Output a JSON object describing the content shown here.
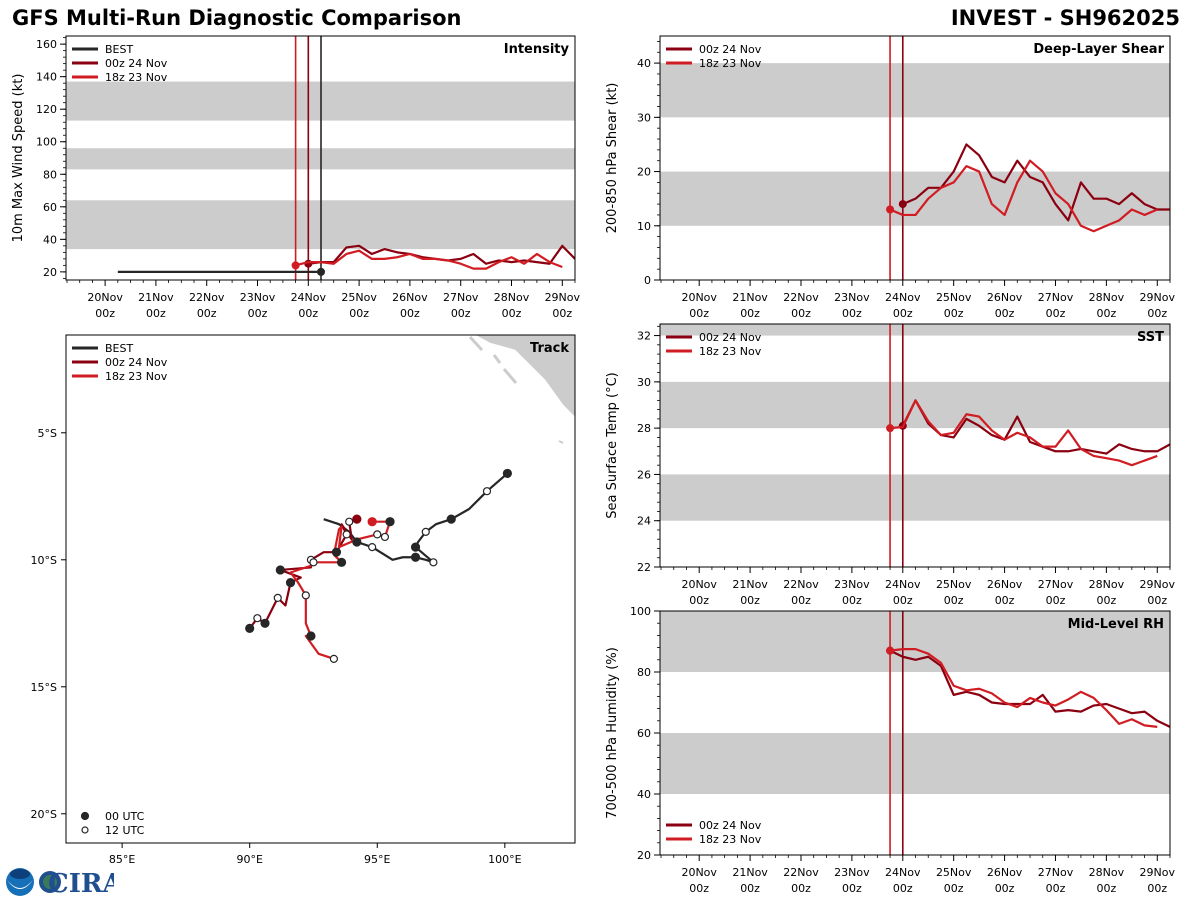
{
  "header": {
    "title": "GFS Multi-Run Diagnostic Comparison",
    "storm": "INVEST - SH962025"
  },
  "colors": {
    "best": "#262626",
    "run_00z_24nov": "#8b0010",
    "run_18z_23nov": "#d01c22",
    "band": "#cccccc"
  },
  "logo": {
    "text": "CIRA"
  },
  "time_axis": {
    "origin": "20Nov 00z",
    "unit": "days",
    "range": [
      -0.77,
      9.25
    ],
    "ticks": [
      {
        "t": 0,
        "line1": "20Nov",
        "line2": "00z"
      },
      {
        "t": 1,
        "line1": "21Nov",
        "line2": "00z"
      },
      {
        "t": 2,
        "line1": "22Nov",
        "line2": "00z"
      },
      {
        "t": 3,
        "line1": "23Nov",
        "line2": "00z"
      },
      {
        "t": 4,
        "line1": "24Nov",
        "line2": "00z"
      },
      {
        "t": 5,
        "line1": "25Nov",
        "line2": "00z"
      },
      {
        "t": 6,
        "line1": "26Nov",
        "line2": "00z"
      },
      {
        "t": 7,
        "line1": "27Nov",
        "line2": "00z"
      },
      {
        "t": 8,
        "line1": "28Nov",
        "line2": "00z"
      },
      {
        "t": 9,
        "line1": "29Nov",
        "line2": "00z"
      }
    ]
  },
  "chart_data": [
    {
      "id": "intensity",
      "type": "line",
      "title": "Intensity",
      "ylabel": "10m Max Wind Speed (kt)",
      "xlabel": "",
      "ylim": [
        15,
        165
      ],
      "yticks": [
        20,
        40,
        60,
        80,
        100,
        120,
        140,
        160
      ],
      "bands": [
        [
          34,
          64
        ],
        [
          83,
          96
        ],
        [
          113,
          137
        ]
      ],
      "legend": {
        "position": "top-left",
        "entries": [
          "BEST",
          "00z 24 Nov",
          "18z 23 Nov"
        ]
      },
      "init_lines": [
        {
          "t": 3.75,
          "series": "18z 23 Nov"
        },
        {
          "t": 4.0,
          "series": "00z 24 Nov"
        },
        {
          "t": 4.25,
          "series": "BEST"
        }
      ],
      "series": [
        {
          "name": "BEST",
          "color_key": "best",
          "t": [
            0.25,
            4.25
          ],
          "values": [
            20,
            20
          ],
          "marker_end": true
        },
        {
          "name": "00z 24 Nov",
          "color_key": "run_00z_24nov",
          "t": [
            4.0,
            4.25,
            4.5,
            4.75,
            5.0,
            5.25,
            5.5,
            5.75,
            6.0,
            6.25,
            6.5,
            6.75,
            7.0,
            7.25,
            7.5,
            7.75,
            8.0,
            8.25,
            8.5,
            8.75,
            9.0,
            9.25
          ],
          "values": [
            25,
            26,
            26,
            35,
            36,
            31,
            34,
            32,
            31,
            29,
            28,
            27,
            28,
            31,
            25,
            27,
            26,
            27,
            26,
            25,
            36,
            28
          ]
        },
        {
          "name": "18z 23 Nov",
          "color_key": "run_18z_23nov",
          "t": [
            3.75,
            4.0,
            4.25,
            4.5,
            4.75,
            5.0,
            5.25,
            5.5,
            5.75,
            6.0,
            6.25,
            6.5,
            6.75,
            7.0,
            7.25,
            7.5,
            7.75,
            8.0,
            8.25,
            8.5,
            8.75,
            9.0
          ],
          "values": [
            24,
            26,
            26,
            25,
            31,
            33,
            28,
            28,
            29,
            31,
            28,
            28,
            27,
            25,
            22,
            22,
            26,
            29,
            25,
            31,
            26,
            23
          ]
        }
      ]
    },
    {
      "id": "shear",
      "type": "line",
      "title": "Deep-Layer Shear",
      "ylabel": "200-850 hPa Shear (kt)",
      "xlabel": "",
      "ylim": [
        0,
        45
      ],
      "yticks": [
        0,
        10,
        20,
        30,
        40
      ],
      "bands": [
        [
          10,
          20
        ],
        [
          30,
          40
        ]
      ],
      "legend": {
        "position": "top-left",
        "entries": [
          "00z 24 Nov",
          "18z 23 Nov"
        ]
      },
      "init_lines": [
        {
          "t": 3.75,
          "series": "18z 23 Nov"
        },
        {
          "t": 4.0,
          "series": "00z 24 Nov"
        }
      ],
      "series": [
        {
          "name": "00z 24 Nov",
          "color_key": "run_00z_24nov",
          "t": [
            4.0,
            4.25,
            4.5,
            4.75,
            5.0,
            5.25,
            5.5,
            5.75,
            6.0,
            6.25,
            6.5,
            6.75,
            7.0,
            7.25,
            7.5,
            7.75,
            8.0,
            8.25,
            8.5,
            8.75,
            9.0,
            9.25
          ],
          "values": [
            14,
            15,
            17,
            17,
            20,
            25,
            23,
            19,
            18,
            22,
            19,
            18,
            14,
            11,
            18,
            15,
            15,
            14,
            16,
            14,
            13,
            13
          ]
        },
        {
          "name": "18z 23 Nov",
          "color_key": "run_18z_23nov",
          "t": [
            3.75,
            4.0,
            4.25,
            4.5,
            4.75,
            5.0,
            5.25,
            5.5,
            5.75,
            6.0,
            6.25,
            6.5,
            6.75,
            7.0,
            7.25,
            7.5,
            7.75,
            8.0,
            8.25,
            8.5,
            8.75,
            9.0
          ],
          "values": [
            13,
            12,
            12,
            15,
            17,
            18,
            21,
            20,
            14,
            12,
            18,
            22,
            20,
            16,
            14,
            10,
            9,
            10,
            11,
            13,
            12,
            13
          ]
        }
      ]
    },
    {
      "id": "track",
      "type": "scatter",
      "title": "Track",
      "xlabel": "",
      "ylabel": "",
      "xlim": [
        82.8,
        102.75
      ],
      "ylim": [
        -21.15,
        -1.15
      ],
      "xticks": [
        {
          "v": 85,
          "label": "85°E"
        },
        {
          "v": 90,
          "label": "90°E"
        },
        {
          "v": 95,
          "label": "95°E"
        },
        {
          "v": 100,
          "label": "100°E"
        }
      ],
      "yticks": [
        {
          "v": -5,
          "label": "5°S"
        },
        {
          "v": -10,
          "label": "10°S"
        },
        {
          "v": -15,
          "label": "15°S"
        },
        {
          "v": -20,
          "label": "20°S"
        }
      ],
      "legend": {
        "position": "top-left",
        "entries": [
          "BEST",
          "00z 24 Nov",
          "18z 23 Nov"
        ]
      },
      "marker_legend": {
        "position": "bottom-left",
        "entries": [
          {
            "label": "00 UTC",
            "fill": "filled"
          },
          {
            "label": "12 UTC",
            "fill": "open"
          }
        ]
      },
      "series": [
        {
          "name": "BEST",
          "color_key": "best",
          "lon": [
            100.1,
            99.3,
            98.6,
            97.9,
            97.3,
            96.9,
            96.6,
            96.5,
            97.2,
            96.9,
            96.5,
            96.0,
            95.6,
            94.8,
            94.2,
            93.9,
            93.5,
            92.9
          ],
          "lat": [
            -6.6,
            -7.3,
            -8.0,
            -8.4,
            -8.6,
            -8.9,
            -9.3,
            -9.5,
            -10.1,
            -10.0,
            -9.9,
            -9.9,
            -10.0,
            -9.5,
            -9.3,
            -8.9,
            -8.6,
            -8.4
          ],
          "markers": [
            "f",
            "o",
            "",
            "f",
            "",
            "o",
            "",
            "f",
            "o",
            "",
            "f",
            "",
            "",
            "o",
            "f",
            "",
            "",
            ""
          ]
        },
        {
          "name": "00z 24 Nov",
          "color_key": "run_00z_24nov",
          "lon": [
            94.2,
            93.9,
            94.0,
            93.6,
            93.8,
            93.4,
            92.9,
            92.4,
            92.4,
            91.2,
            92.0,
            91.6,
            91.4,
            91.1,
            90.6,
            90.3,
            90.0
          ],
          "lat": [
            -8.4,
            -8.5,
            -9.2,
            -8.6,
            -9.0,
            -9.7,
            -9.7,
            -10.0,
            -10.3,
            -10.4,
            -10.7,
            -10.9,
            -11.8,
            -11.5,
            -12.5,
            -12.3,
            -12.7
          ],
          "markers": [
            "f",
            "o",
            "",
            "",
            "o",
            "f",
            "",
            "o",
            "",
            "f",
            "",
            "f",
            "",
            "o",
            "f",
            "o",
            "f"
          ]
        },
        {
          "name": "18z 23 Nov",
          "color_key": "run_18z_23nov",
          "lon": [
            94.8,
            95.5,
            95.3,
            95.0,
            94.2,
            93.5,
            93.6,
            93.5,
            93.3,
            93.6,
            92.5,
            92.5,
            91.6,
            91.9,
            92.2,
            92.2,
            92.4,
            92.2,
            92.7,
            93.3
          ],
          "lat": [
            -8.5,
            -8.5,
            -9.1,
            -9.0,
            -9.2,
            -9.5,
            -8.7,
            -8.8,
            -9.8,
            -10.1,
            -10.1,
            -10.2,
            -10.5,
            -10.9,
            -11.4,
            -12.5,
            -13.0,
            -13.0,
            -13.7,
            -13.9
          ],
          "markers": [
            "f",
            "f",
            "o",
            "o",
            "",
            "",
            "",
            "",
            "",
            "f",
            "o",
            "",
            "",
            "",
            "o",
            "",
            "f",
            "",
            "",
            "o"
          ]
        }
      ]
    },
    {
      "id": "sst",
      "type": "line",
      "title": "SST",
      "ylabel": "Sea Surface Temp (°C)",
      "xlabel": "",
      "ylim": [
        22,
        32.5
      ],
      "yticks": [
        22,
        24,
        26,
        28,
        30,
        32
      ],
      "bands": [
        [
          24,
          26
        ],
        [
          28,
          30
        ],
        [
          32,
          32.5
        ]
      ],
      "legend": {
        "position": "top-left",
        "entries": [
          "00z 24 Nov",
          "18z 23 Nov"
        ]
      },
      "init_lines": [
        {
          "t": 3.75,
          "series": "18z 23 Nov"
        },
        {
          "t": 4.0,
          "series": "00z 24 Nov"
        }
      ],
      "series": [
        {
          "name": "00z 24 Nov",
          "color_key": "run_00z_24nov",
          "t": [
            4.0,
            4.25,
            4.5,
            4.75,
            5.0,
            5.25,
            5.5,
            5.75,
            6.0,
            6.25,
            6.5,
            6.75,
            7.0,
            7.25,
            7.5,
            7.75,
            8.0,
            8.25,
            8.5,
            8.75,
            9.0,
            9.25
          ],
          "values": [
            28.1,
            29.2,
            28.2,
            27.7,
            27.6,
            28.4,
            28.1,
            27.7,
            27.5,
            28.5,
            27.4,
            27.2,
            27.0,
            27.0,
            27.1,
            27.0,
            26.9,
            27.3,
            27.1,
            27.0,
            27.0,
            27.3
          ]
        },
        {
          "name": "18z 23 Nov",
          "color_key": "run_18z_23nov",
          "t": [
            3.75,
            4.0,
            4.25,
            4.5,
            4.75,
            5.0,
            5.25,
            5.5,
            5.75,
            6.0,
            6.25,
            6.5,
            6.75,
            7.0,
            7.25,
            7.5,
            7.75,
            8.0,
            8.25,
            8.5,
            8.75,
            9.0
          ],
          "values": [
            28.0,
            28.05,
            29.2,
            28.3,
            27.7,
            27.8,
            28.6,
            28.5,
            27.9,
            27.5,
            27.8,
            27.6,
            27.2,
            27.2,
            27.9,
            27.1,
            26.8,
            26.7,
            26.6,
            26.4,
            26.6,
            26.8
          ]
        }
      ]
    },
    {
      "id": "rh",
      "type": "line",
      "title": "Mid-Level RH",
      "ylabel": "700-500 hPa Humidity (%)",
      "xlabel": "",
      "ylim": [
        20,
        100
      ],
      "yticks": [
        20,
        40,
        60,
        80,
        100
      ],
      "bands": [
        [
          40,
          60
        ],
        [
          80,
          100
        ]
      ],
      "legend": {
        "position": "bottom-left",
        "entries": [
          "00z 24 Nov",
          "18z 23 Nov"
        ]
      },
      "init_lines": [
        {
          "t": 3.75,
          "series": "18z 23 Nov"
        },
        {
          "t": 4.0,
          "series": "00z 24 Nov"
        }
      ],
      "series": [
        {
          "name": "00z 24 Nov",
          "color_key": "run_00z_24nov",
          "t": [
            3.75,
            4.0,
            4.25,
            4.5,
            4.75,
            5.0,
            5.25,
            5.5,
            5.75,
            6.0,
            6.25,
            6.5,
            6.75,
            7.0,
            7.25,
            7.5,
            7.75,
            8.0,
            8.25,
            8.5,
            8.75,
            9.0,
            9.25
          ],
          "values": [
            87,
            85,
            84,
            85,
            82,
            72.5,
            73.5,
            72.5,
            70,
            69.5,
            69.5,
            69.5,
            72.5,
            67,
            67.5,
            67,
            69,
            69.5,
            68,
            66.5,
            67,
            64,
            62
          ]
        },
        {
          "name": "18z 23 Nov",
          "color_key": "run_18z_23nov",
          "t": [
            3.75,
            4.0,
            4.25,
            4.5,
            4.75,
            5.0,
            5.25,
            5.5,
            5.75,
            6.0,
            6.25,
            6.5,
            6.75,
            7.0,
            7.25,
            7.5,
            7.75,
            8.0,
            8.25,
            8.5,
            8.75,
            9.0
          ],
          "values": [
            87,
            87.5,
            87.5,
            86,
            83,
            75.5,
            74,
            74.5,
            73,
            70,
            68.5,
            71.5,
            70,
            69,
            71,
            73.5,
            71.5,
            67.5,
            63,
            64.5,
            62.5,
            62
          ]
        }
      ]
    }
  ]
}
